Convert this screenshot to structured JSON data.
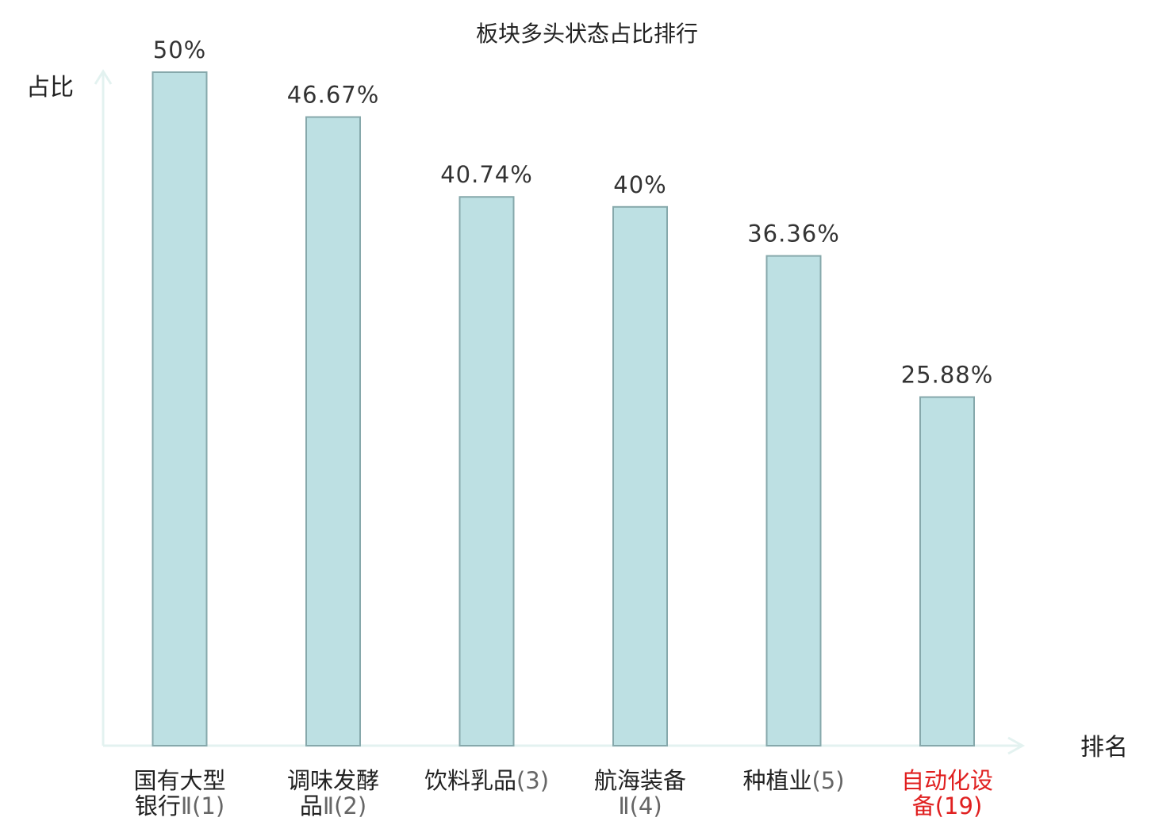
{
  "chart_data": {
    "type": "bar",
    "title": "板块多头状态占比排行",
    "ylabel": "占比",
    "xlabel": "排名",
    "ylim": [
      0,
      50
    ],
    "grid": false,
    "bar_color": "#bde0e3",
    "bar_edge_color": "#86a8ab",
    "label_color": "#222222",
    "highlight_color": "#e02020",
    "categories": [
      {
        "lines": [
          [
            "国有大型",
            ""
          ],
          [
            "银行",
            "Ⅱ(1)"
          ]
        ],
        "highlight": false
      },
      {
        "lines": [
          [
            "调味发酵",
            ""
          ],
          [
            "品",
            "Ⅱ(2)"
          ]
        ],
        "highlight": false
      },
      {
        "lines": [
          [
            "饮料乳品",
            "(3)"
          ]
        ],
        "highlight": false
      },
      {
        "lines": [
          [
            "航海装备",
            ""
          ],
          [
            "",
            "Ⅱ(4)"
          ]
        ],
        "highlight": false
      },
      {
        "lines": [
          [
            "种植业",
            "(5)"
          ]
        ],
        "highlight": false
      },
      {
        "lines": [
          [
            "自动化设",
            ""
          ],
          [
            "备",
            "(19)"
          ]
        ],
        "highlight": true
      }
    ],
    "values": [
      50,
      46.67,
      40.74,
      40,
      36.36,
      25.88
    ],
    "value_labels": [
      "50%",
      "46.67%",
      "40.74%",
      "40%",
      "36.36%",
      "25.88%"
    ]
  }
}
